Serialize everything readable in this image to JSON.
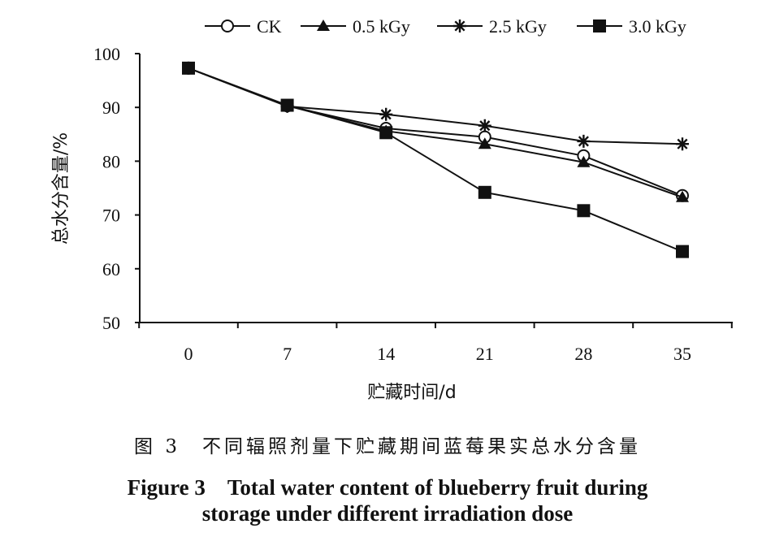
{
  "chart_data": {
    "type": "line",
    "xlabel": "贮藏时间/d",
    "ylabel": "总水分含量/%",
    "x": [
      0,
      7,
      14,
      21,
      28,
      35
    ],
    "xlim": [
      0,
      35
    ],
    "ylim": [
      50,
      100
    ],
    "yticks": [
      50,
      60,
      70,
      80,
      90,
      100
    ],
    "grid": false,
    "legend_position": "top",
    "series": [
      {
        "name": "CK",
        "marker": "open-circle",
        "values": [
          97.3,
          90.3,
          86.1,
          84.5,
          81.0,
          73.6
        ]
      },
      {
        "name": "0.5 kGy",
        "marker": "filled-triangle",
        "values": [
          97.3,
          90.3,
          85.6,
          83.2,
          79.8,
          73.3
        ]
      },
      {
        "name": "2.5 kGy",
        "marker": "star",
        "values": [
          97.3,
          90.2,
          88.7,
          86.6,
          83.7,
          83.2
        ]
      },
      {
        "name": "3.0 kGy",
        "marker": "filled-square",
        "values": [
          97.3,
          90.4,
          85.3,
          74.2,
          70.8,
          63.2
        ]
      }
    ]
  },
  "caption": {
    "chinese": "图 3　不同辐照剂量下贮藏期间蓝莓果实总水分含量",
    "english_line1": "Figure 3　Total water content of blueberry fruit during",
    "english_line2": "storage under different irradiation dose"
  },
  "colors": {
    "line": "#111111",
    "background": "#ffffff"
  }
}
